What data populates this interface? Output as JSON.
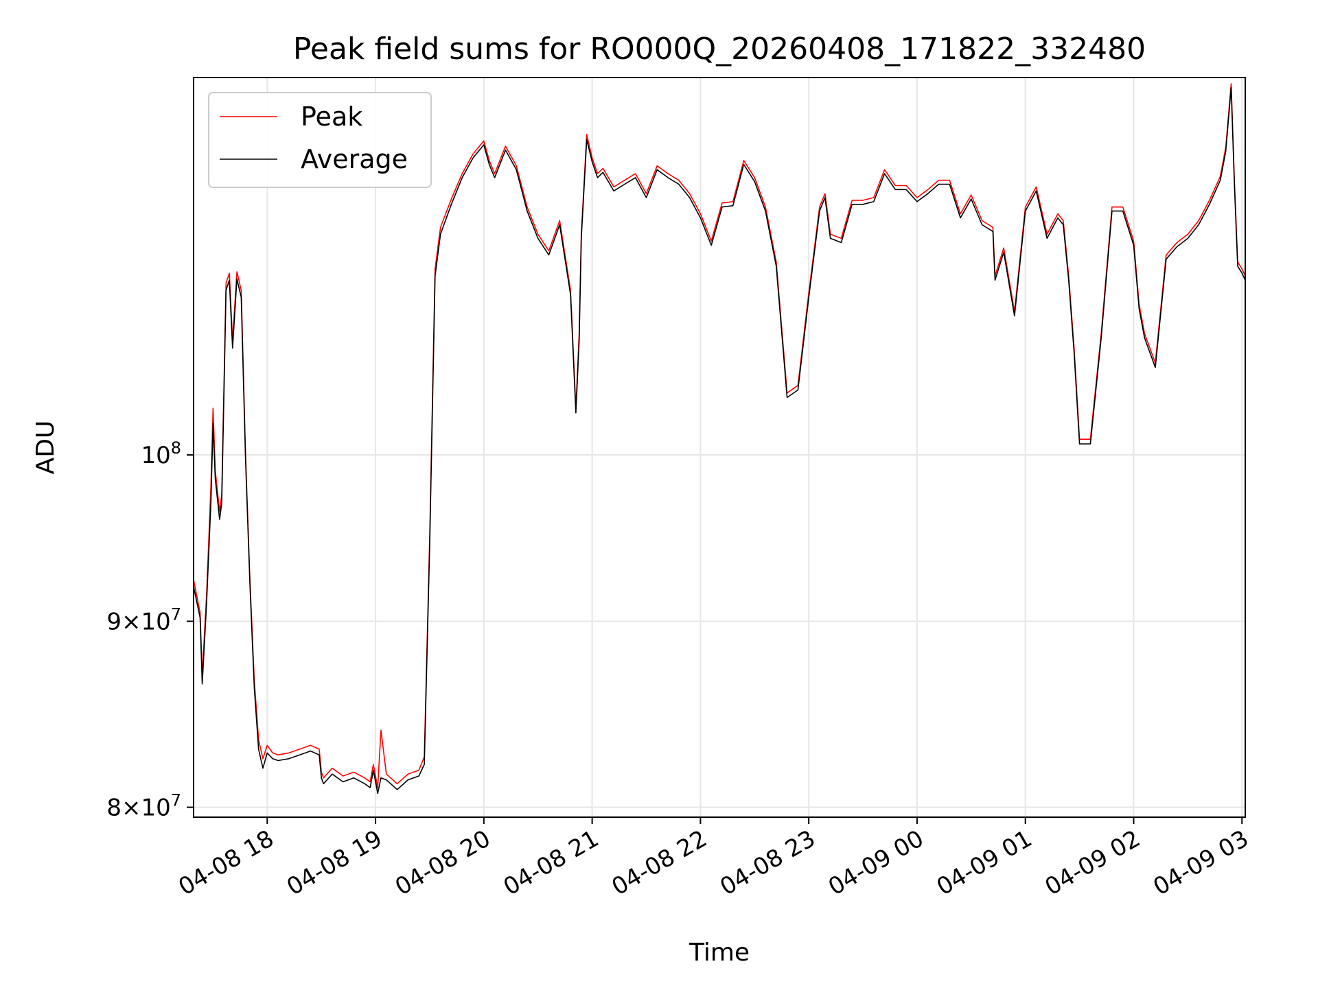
{
  "chart_data": {
    "type": "line",
    "title": "Peak field sums for RO000Q_20260408_171822_332480",
    "xlabel": "Time",
    "ylabel": "ADU",
    "yscale": "log",
    "xlim": [
      17.32,
      27.03
    ],
    "ylim": [
      79500000,
      127000000
    ],
    "grid": true,
    "legend_position": "top-left",
    "x_ticks": [
      {
        "value": 18,
        "label": "04-08 18"
      },
      {
        "value": 19,
        "label": "04-08 19"
      },
      {
        "value": 20,
        "label": "04-08 20"
      },
      {
        "value": 21,
        "label": "04-08 21"
      },
      {
        "value": 22,
        "label": "04-08 22"
      },
      {
        "value": 23,
        "label": "04-08 23"
      },
      {
        "value": 24,
        "label": "04-09 00"
      },
      {
        "value": 25,
        "label": "04-09 01"
      },
      {
        "value": 26,
        "label": "04-09 02"
      },
      {
        "value": 27,
        "label": "04-09 03"
      }
    ],
    "y_ticks": [
      {
        "value": 80000000,
        "mant": "8",
        "exp": "7"
      },
      {
        "value": 90000000,
        "mant": "9",
        "exp": "7"
      },
      {
        "value": 100000000,
        "mant": "",
        "exp": "8"
      }
    ],
    "series": [
      {
        "name": "Peak",
        "color": "#ff0000",
        "x": [
          17.32,
          17.38,
          17.4,
          17.44,
          17.48,
          17.5,
          17.52,
          17.56,
          17.58,
          17.62,
          17.65,
          17.68,
          17.72,
          17.76,
          17.8,
          17.84,
          17.88,
          17.92,
          17.96,
          18.0,
          18.05,
          18.1,
          18.2,
          18.3,
          18.4,
          18.48,
          18.5,
          18.52,
          18.6,
          18.7,
          18.8,
          18.9,
          18.95,
          18.98,
          19.02,
          19.05,
          19.1,
          19.2,
          19.3,
          19.4,
          19.45,
          19.5,
          19.55,
          19.6,
          19.7,
          19.8,
          19.9,
          20.0,
          20.05,
          20.1,
          20.2,
          20.3,
          20.4,
          20.5,
          20.6,
          20.7,
          20.8,
          20.85,
          20.88,
          20.9,
          20.95,
          21.0,
          21.05,
          21.1,
          21.2,
          21.3,
          21.4,
          21.5,
          21.6,
          21.7,
          21.8,
          21.9,
          22.0,
          22.1,
          22.2,
          22.3,
          22.4,
          22.5,
          22.6,
          22.7,
          22.8,
          22.9,
          23.0,
          23.1,
          23.15,
          23.2,
          23.3,
          23.4,
          23.5,
          23.6,
          23.7,
          23.8,
          23.9,
          24.0,
          24.1,
          24.2,
          24.3,
          24.4,
          24.5,
          24.6,
          24.7,
          24.72,
          24.8,
          24.9,
          25.0,
          25.1,
          25.2,
          25.3,
          25.35,
          25.4,
          25.45,
          25.5,
          25.6,
          25.7,
          25.8,
          25.9,
          26.0,
          26.05,
          26.1,
          26.2,
          26.3,
          26.4,
          26.5,
          26.6,
          26.7,
          26.8,
          26.85,
          26.9,
          26.93,
          26.96,
          27.0,
          27.03
        ],
        "values": [
          92400000,
          90500000,
          87000000,
          91500000,
          98000000,
          103000000,
          99000000,
          96500000,
          97500000,
          111500000,
          112200000,
          107500000,
          112300000,
          111000000,
          100000000,
          92500000,
          86700000,
          83500000,
          82500000,
          83200000,
          82800000,
          82700000,
          82800000,
          83000000,
          83200000,
          83000000,
          81800000,
          81500000,
          82000000,
          81600000,
          81800000,
          81500000,
          81300000,
          82200000,
          81000000,
          84000000,
          81700000,
          81200000,
          81700000,
          81900000,
          82600000,
          95000000,
          112500000,
          115500000,
          117600000,
          119500000,
          121000000,
          122000000,
          120500000,
          119500000,
          121600000,
          120100000,
          117000000,
          115000000,
          113800000,
          116000000,
          111000000,
          103000000,
          108000000,
          115000000,
          122500000,
          120700000,
          119500000,
          119900000,
          118500000,
          119000000,
          119500000,
          118000000,
          120100000,
          119500000,
          119000000,
          118000000,
          116500000,
          114500000,
          117300000,
          117400000,
          120500000,
          119200000,
          117000000,
          113000000,
          104000000,
          104500000,
          110800000,
          117000000,
          118000000,
          115000000,
          114700000,
          117500000,
          117500000,
          117700000,
          119800000,
          118600000,
          118600000,
          117700000,
          118300000,
          119000000,
          119000000,
          116500000,
          117900000,
          116000000,
          115500000,
          112000000,
          114000000,
          109500000,
          117000000,
          118500000,
          115000000,
          116500000,
          116000000,
          112000000,
          107000000,
          101000000,
          101000000,
          108000000,
          117000000,
          117000000,
          114500000,
          110000000,
          108000000,
          106000000,
          113500000,
          114400000,
          115000000,
          116000000,
          117500000,
          119300000,
          121500000,
          126500000,
          119000000,
          113000000,
          112500000,
          112000000
        ]
      },
      {
        "name": "Average",
        "color": "#000000",
        "x": [
          17.32,
          17.38,
          17.4,
          17.44,
          17.48,
          17.5,
          17.52,
          17.56,
          17.58,
          17.62,
          17.65,
          17.68,
          17.72,
          17.76,
          17.8,
          17.84,
          17.88,
          17.92,
          17.96,
          18.0,
          18.05,
          18.1,
          18.2,
          18.3,
          18.4,
          18.48,
          18.5,
          18.52,
          18.6,
          18.7,
          18.8,
          18.9,
          18.95,
          18.98,
          19.02,
          19.05,
          19.1,
          19.2,
          19.3,
          19.4,
          19.45,
          19.5,
          19.55,
          19.6,
          19.7,
          19.8,
          19.9,
          20.0,
          20.05,
          20.1,
          20.2,
          20.3,
          20.4,
          20.5,
          20.6,
          20.7,
          20.8,
          20.85,
          20.88,
          20.9,
          20.95,
          21.0,
          21.05,
          21.1,
          21.2,
          21.3,
          21.4,
          21.5,
          21.6,
          21.7,
          21.8,
          21.9,
          22.0,
          22.1,
          22.2,
          22.3,
          22.4,
          22.5,
          22.6,
          22.7,
          22.8,
          22.9,
          23.0,
          23.1,
          23.15,
          23.2,
          23.3,
          23.4,
          23.5,
          23.6,
          23.7,
          23.8,
          23.9,
          24.0,
          24.1,
          24.2,
          24.3,
          24.4,
          24.5,
          24.6,
          24.7,
          24.72,
          24.8,
          24.9,
          25.0,
          25.1,
          25.2,
          25.3,
          25.35,
          25.4,
          25.45,
          25.5,
          25.6,
          25.7,
          25.8,
          25.9,
          26.0,
          26.05,
          26.1,
          26.2,
          26.3,
          26.4,
          26.5,
          26.6,
          26.7,
          26.8,
          26.85,
          26.9,
          26.93,
          26.96,
          27.0,
          27.03
        ],
        "values": [
          92000000,
          90200000,
          86500000,
          91000000,
          97000000,
          102000000,
          98500000,
          96000000,
          97000000,
          111000000,
          111700000,
          107000000,
          111800000,
          110500000,
          99700000,
          92200000,
          86300000,
          83000000,
          82000000,
          82800000,
          82500000,
          82400000,
          82500000,
          82700000,
          82900000,
          82700000,
          81500000,
          81200000,
          81700000,
          81300000,
          81500000,
          81200000,
          81000000,
          81900000,
          80700000,
          81500000,
          81400000,
          80900000,
          81400000,
          81600000,
          82200000,
          94500000,
          112000000,
          115000000,
          117200000,
          119200000,
          120700000,
          121700000,
          120200000,
          119200000,
          121300000,
          119800000,
          116700000,
          114700000,
          113500000,
          115700000,
          110700000,
          102700000,
          107500000,
          114700000,
          122100000,
          120400000,
          119200000,
          119600000,
          118200000,
          118700000,
          119200000,
          117700000,
          119800000,
          119200000,
          118700000,
          117700000,
          116200000,
          114200000,
          117000000,
          117100000,
          120200000,
          118900000,
          116700000,
          112700000,
          103700000,
          104200000,
          110500000,
          116700000,
          117700000,
          114700000,
          114400000,
          117200000,
          117200000,
          117400000,
          119500000,
          118300000,
          118300000,
          117400000,
          118000000,
          118700000,
          118700000,
          116200000,
          117600000,
          115700000,
          115200000,
          111700000,
          113700000,
          109200000,
          116700000,
          118200000,
          114700000,
          116200000,
          115700000,
          111700000,
          106700000,
          100700000,
          100700000,
          107700000,
          116700000,
          116700000,
          114200000,
          109700000,
          107700000,
          105700000,
          113200000,
          114100000,
          114700000,
          115700000,
          117200000,
          119000000,
          121200000,
          126200000,
          118700000,
          112700000,
          112200000,
          111700000
        ]
      }
    ]
  }
}
